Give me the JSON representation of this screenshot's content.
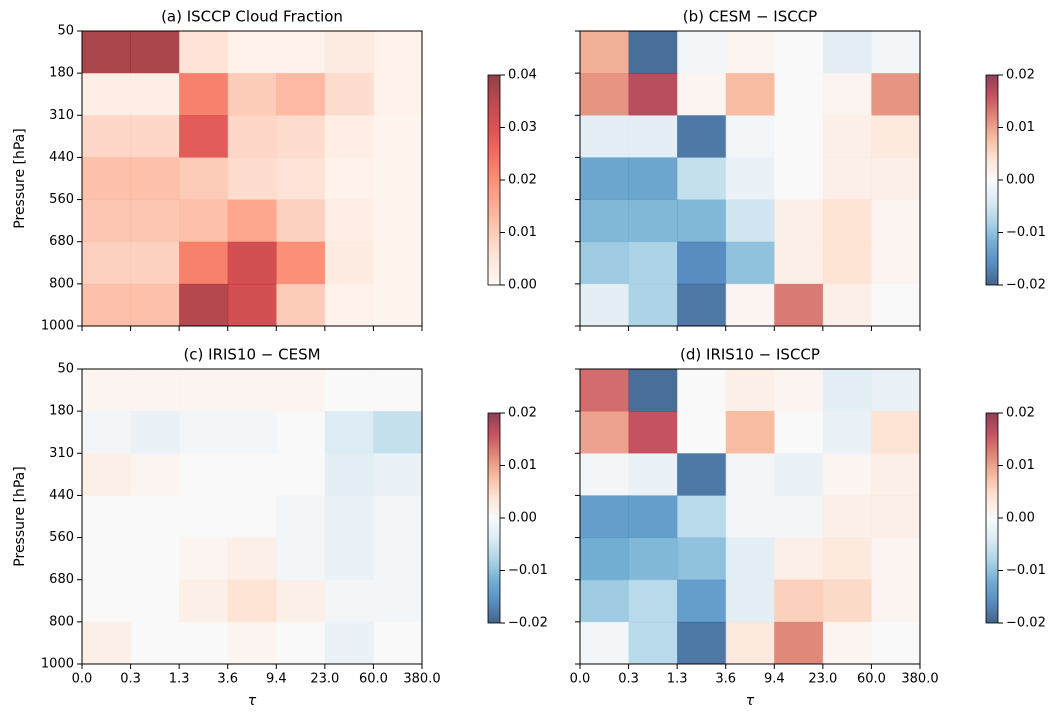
{
  "chart_data": [
    {
      "type": "heatmap",
      "title": "(a) ISCCP Cloud Fraction",
      "colormap": "Reds",
      "y_edges": [
        "50",
        "180",
        "310",
        "440",
        "560",
        "680",
        "800",
        "1000"
      ],
      "ylabel": "Pressure [hPa]",
      "zlim": [
        0,
        0.04
      ],
      "zticks": [
        {
          "value": 0,
          "label": "0.00"
        },
        {
          "value": 0.01,
          "label": "0.01"
        },
        {
          "value": 0.02,
          "label": "0.02"
        },
        {
          "value": 0.03,
          "label": "0.03"
        },
        {
          "value": 0.04,
          "label": "0.04"
        }
      ],
      "values": [
        [
          0.037,
          0.037,
          0.006,
          0.002,
          0.002,
          0.004,
          0.002
        ],
        [
          0.003,
          0.003,
          0.022,
          0.01,
          0.013,
          0.007,
          0.002
        ],
        [
          0.008,
          0.008,
          0.028,
          0.008,
          0.007,
          0.003,
          0.001
        ],
        [
          0.012,
          0.012,
          0.01,
          0.007,
          0.006,
          0.002,
          0.001
        ],
        [
          0.011,
          0.011,
          0.012,
          0.016,
          0.009,
          0.003,
          0.001
        ],
        [
          0.009,
          0.009,
          0.022,
          0.031,
          0.02,
          0.004,
          0.001
        ],
        [
          0.012,
          0.012,
          0.036,
          0.031,
          0.01,
          0.002,
          0.001
        ]
      ]
    },
    {
      "type": "heatmap",
      "title": "(b) CESM − ISCCP",
      "colormap": "RdBu_r",
      "zlim": [
        -0.02,
        0.02
      ],
      "zticks": [
        {
          "value": 0.02,
          "label": "0.02"
        },
        {
          "value": 0.01,
          "label": "0.01"
        },
        {
          "value": 0,
          "label": "0.00"
        },
        {
          "value": -0.01,
          "label": "−0.01"
        },
        {
          "value": -0.02,
          "label": "−0.02"
        }
      ],
      "values": [
        [
          0.009,
          -0.019,
          -0.001,
          0.001,
          0.0,
          -0.003,
          -0.001
        ],
        [
          0.011,
          0.017,
          0.001,
          0.008,
          0.0,
          0.001,
          0.011
        ],
        [
          -0.003,
          -0.003,
          -0.018,
          -0.001,
          0.0,
          0.002,
          0.003
        ],
        [
          -0.013,
          -0.013,
          -0.006,
          -0.002,
          0.0,
          0.002,
          0.002
        ],
        [
          -0.011,
          -0.011,
          -0.011,
          -0.005,
          0.002,
          0.004,
          0.001
        ],
        [
          -0.009,
          -0.008,
          -0.016,
          -0.01,
          0.002,
          0.004,
          0.001
        ],
        [
          -0.003,
          -0.008,
          -0.018,
          0.001,
          0.013,
          0.002,
          0.0
        ]
      ]
    },
    {
      "type": "heatmap",
      "title": "(c) IRIS10 − CESM",
      "colormap": "RdBu_r",
      "x_edges": [
        "0.0",
        "0.3",
        "1.3",
        "3.6",
        "9.4",
        "23.0",
        "60.0",
        "380.0"
      ],
      "xlabel": "τ",
      "y_edges": [
        "50",
        "180",
        "310",
        "440",
        "560",
        "680",
        "800",
        "1000"
      ],
      "ylabel": "Pressure [hPa]",
      "zlim": [
        -0.02,
        0.02
      ],
      "zticks": [
        {
          "value": 0.02,
          "label": "0.02"
        },
        {
          "value": 0.01,
          "label": "0.01"
        },
        {
          "value": 0,
          "label": "0.00"
        },
        {
          "value": -0.01,
          "label": "−0.01"
        },
        {
          "value": -0.02,
          "label": "−0.02"
        }
      ],
      "values": [
        [
          0.001,
          0.001,
          0.001,
          0.001,
          0.001,
          0.0,
          0.0
        ],
        [
          -0.001,
          -0.002,
          -0.001,
          -0.001,
          0.0,
          -0.004,
          -0.006
        ],
        [
          0.002,
          0.001,
          0.0,
          0.0,
          0.0,
          -0.003,
          -0.002
        ],
        [
          0.0,
          0.0,
          0.0,
          0.0,
          -0.001,
          -0.002,
          -0.001
        ],
        [
          0.0,
          0.0,
          0.001,
          0.002,
          -0.001,
          -0.002,
          -0.001
        ],
        [
          0.0,
          0.0,
          0.002,
          0.004,
          0.002,
          -0.001,
          -0.001
        ],
        [
          0.002,
          0.0,
          0.0,
          0.001,
          0.0,
          -0.002,
          0.0
        ]
      ]
    },
    {
      "type": "heatmap",
      "title": "(d) IRIS10 − ISCCP",
      "colormap": "RdBu_r",
      "x_edges": [
        "0.0",
        "0.3",
        "1.3",
        "3.6",
        "9.4",
        "23.0",
        "60.0",
        "380.0"
      ],
      "xlabel": "τ",
      "zlim": [
        -0.02,
        0.02
      ],
      "zticks": [
        {
          "value": 0.02,
          "label": "0.02"
        },
        {
          "value": 0.01,
          "label": "0.01"
        },
        {
          "value": 0,
          "label": "0.00"
        },
        {
          "value": -0.01,
          "label": "−0.01"
        },
        {
          "value": -0.02,
          "label": "−0.02"
        }
      ],
      "values": [
        [
          0.014,
          -0.019,
          0.0,
          0.002,
          0.001,
          -0.003,
          -0.002
        ],
        [
          0.01,
          0.016,
          0.0,
          0.008,
          0.0,
          -0.002,
          0.004
        ],
        [
          -0.001,
          -0.002,
          -0.018,
          -0.001,
          -0.002,
          0.001,
          0.002
        ],
        [
          -0.014,
          -0.014,
          -0.007,
          -0.001,
          -0.001,
          0.002,
          0.002
        ],
        [
          -0.012,
          -0.011,
          -0.01,
          -0.003,
          0.002,
          0.003,
          0.001
        ],
        [
          -0.009,
          -0.007,
          -0.014,
          -0.003,
          0.006,
          0.005,
          0.001
        ],
        [
          -0.001,
          -0.007,
          -0.018,
          0.003,
          0.012,
          0.001,
          0.0
        ]
      ]
    }
  ]
}
